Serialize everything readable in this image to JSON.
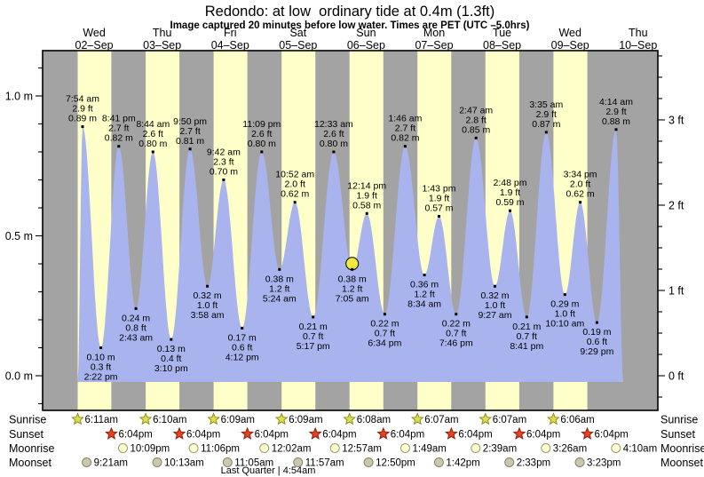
{
  "title": "Redondo: at low  ordinary tide at 0.4m (1.3ft)",
  "subtitle": "Image captured 20 minutes before low water. Times are PET (UTC –5.0hrs)",
  "days": [
    {
      "name": "Wed",
      "date": "02–Sep"
    },
    {
      "name": "Thu",
      "date": "03–Sep"
    },
    {
      "name": "Fri",
      "date": "04–Sep"
    },
    {
      "name": "Sat",
      "date": "05–Sep"
    },
    {
      "name": "Sun",
      "date": "06–Sep"
    },
    {
      "name": "Mon",
      "date": "07–Sep"
    },
    {
      "name": "Tue",
      "date": "08–Sep"
    },
    {
      "name": "Wed",
      "date": "09–Sep"
    },
    {
      "name": "Thu",
      "date": "10–Sep"
    }
  ],
  "chart_data": {
    "type": "area",
    "x_unit": "hours since Wed 02-Sep 00:00",
    "y_unit_left": "m",
    "y_unit_right": "ft",
    "yticks_m": [
      {
        "v": 1.0,
        "label": "1.0 m"
      },
      {
        "v": 0.5,
        "label": "0.5 m"
      },
      {
        "v": 0.0,
        "label": "0.0 m"
      }
    ],
    "yticks_ft": [
      {
        "v": 3,
        "label": "3 ft"
      },
      {
        "v": 2,
        "label": "2 ft"
      },
      {
        "v": 1,
        "label": "1 ft"
      },
      {
        "v": 0,
        "label": "0 ft"
      }
    ],
    "events": [
      {
        "t": 7.9,
        "time": "7:54 am",
        "ft": 2.9,
        "m": 0.89,
        "type": "high"
      },
      {
        "t": 14.3667,
        "time": "2:22 pm",
        "ft": 0.3,
        "m": 0.1,
        "type": "low"
      },
      {
        "t": 20.6833,
        "time": "8:41 pm",
        "ft": 2.7,
        "m": 0.82,
        "type": "high"
      },
      {
        "t": 26.7167,
        "time": "2:43 am",
        "ft": 0.8,
        "m": 0.24,
        "type": "low"
      },
      {
        "t": 32.7333,
        "time": "8:44 am",
        "ft": 2.6,
        "m": 0.8,
        "type": "high"
      },
      {
        "t": 39.1667,
        "time": "3:10 pm",
        "ft": 0.4,
        "m": 0.13,
        "type": "low"
      },
      {
        "t": 45.8333,
        "time": "9:50 pm",
        "ft": 2.7,
        "m": 0.81,
        "type": "high"
      },
      {
        "t": 51.9667,
        "time": "3:58 am",
        "ft": 1.0,
        "m": 0.32,
        "type": "low"
      },
      {
        "t": 57.7,
        "time": "9:42 am",
        "ft": 2.3,
        "m": 0.7,
        "type": "high"
      },
      {
        "t": 64.2,
        "time": "4:12 pm",
        "ft": 0.6,
        "m": 0.17,
        "type": "low"
      },
      {
        "t": 71.15,
        "time": "11:09 pm",
        "ft": 2.6,
        "m": 0.8,
        "type": "high"
      },
      {
        "t": 77.4,
        "time": "5:24 am",
        "ft": 1.2,
        "m": 0.38,
        "type": "low"
      },
      {
        "t": 82.8667,
        "time": "10:52 am",
        "ft": 2.0,
        "m": 0.62,
        "type": "high"
      },
      {
        "t": 89.2833,
        "time": "5:17 pm",
        "ft": 0.7,
        "m": 0.21,
        "type": "low"
      },
      {
        "t": 96.55,
        "time": "12:33 am",
        "ft": 2.6,
        "m": 0.8,
        "type": "high"
      },
      {
        "t": 103.0833,
        "time": "7:05 am",
        "ft": 1.2,
        "m": 0.38,
        "type": "low"
      },
      {
        "t": 108.2333,
        "time": "12:14 pm",
        "ft": 1.9,
        "m": 0.58,
        "type": "high"
      },
      {
        "t": 114.5667,
        "time": "6:34 pm",
        "ft": 0.7,
        "m": 0.22,
        "type": "low"
      },
      {
        "t": 121.7667,
        "time": "1:46 am",
        "ft": 2.7,
        "m": 0.82,
        "type": "high"
      },
      {
        "t": 128.5667,
        "time": "8:34 am",
        "ft": 1.2,
        "m": 0.36,
        "type": "low"
      },
      {
        "t": 133.7167,
        "time": "1:43 pm",
        "ft": 1.9,
        "m": 0.57,
        "type": "high"
      },
      {
        "t": 139.7667,
        "time": "7:46 pm",
        "ft": 0.7,
        "m": 0.22,
        "type": "low"
      },
      {
        "t": 146.7833,
        "time": "2:47 am",
        "ft": 2.8,
        "m": 0.85,
        "type": "high"
      },
      {
        "t": 153.45,
        "time": "9:27 am",
        "ft": 1.0,
        "m": 0.32,
        "type": "low"
      },
      {
        "t": 158.8,
        "time": "2:48 pm",
        "ft": 1.9,
        "m": 0.59,
        "type": "high"
      },
      {
        "t": 164.6833,
        "time": "8:41 pm",
        "ft": 0.7,
        "m": 0.21,
        "type": "low"
      },
      {
        "t": 171.5833,
        "time": "3:35 am",
        "ft": 2.9,
        "m": 0.87,
        "type": "high"
      },
      {
        "t": 178.1667,
        "time": "10:10 am",
        "ft": 1.0,
        "m": 0.29,
        "type": "low"
      },
      {
        "t": 183.5667,
        "time": "3:34 pm",
        "ft": 2.0,
        "m": 0.62,
        "type": "high"
      },
      {
        "t": 189.4833,
        "time": "9:29 pm",
        "ft": 0.6,
        "m": 0.19,
        "type": "low"
      },
      {
        "t": 196.2333,
        "time": "4:14 am",
        "ft": 2.9,
        "m": 0.88,
        "type": "high"
      }
    ],
    "curve_start": {
      "t": 6.17,
      "m": -0.022
    },
    "curve_end": {
      "t": 198.8,
      "m": -0.022
    },
    "current_marker": {
      "t": 103.0833,
      "m": 0.38
    },
    "day_night": {
      "sunrise_t": [
        6.1833,
        30.1667,
        54.15,
        78.15,
        102.1333,
        126.1167,
        150.1167,
        174.1
      ],
      "sunset_t": [
        18.0667,
        42.0667,
        66.0667,
        90.0667,
        114.0667,
        138.0667,
        162.0667,
        186.0667
      ]
    }
  },
  "astro": {
    "rows": [
      {
        "id": "sunrise",
        "label": "Sunrise",
        "icon": "sun-star-yellow",
        "entries": [
          {
            "t": 6.1833,
            "time": "6:11am"
          },
          {
            "t": 30.1667,
            "time": "6:10am"
          },
          {
            "t": 54.15,
            "time": "6:09am"
          },
          {
            "t": 78.15,
            "time": "6:09am"
          },
          {
            "t": 102.1333,
            "time": "6:08am"
          },
          {
            "t": 126.1167,
            "time": "6:07am"
          },
          {
            "t": 150.1167,
            "time": "6:07am"
          },
          {
            "t": 174.1,
            "time": "6:06am"
          }
        ]
      },
      {
        "id": "sunset",
        "label": "Sunset",
        "icon": "sun-star-red",
        "entries": [
          {
            "t": 18.0667,
            "time": "6:04pm"
          },
          {
            "t": 42.0667,
            "time": "6:04pm"
          },
          {
            "t": 66.0667,
            "time": "6:04pm"
          },
          {
            "t": 90.0667,
            "time": "6:04pm"
          },
          {
            "t": 114.0667,
            "time": "6:04pm"
          },
          {
            "t": 138.0667,
            "time": "6:04pm"
          },
          {
            "t": 162.0667,
            "time": "6:04pm"
          },
          {
            "t": 186.0667,
            "time": "6:04pm"
          }
        ]
      },
      {
        "id": "moonrise",
        "label": "Moonrise",
        "icon": "moon-circle-light",
        "entries": [
          {
            "t": 22.15,
            "time": "10:09pm"
          },
          {
            "t": 47.1,
            "time": "11:06pm"
          },
          {
            "t": 72.0333,
            "time": "12:02am"
          },
          {
            "t": 96.95,
            "time": "12:57am"
          },
          {
            "t": 121.8167,
            "time": "1:49am"
          },
          {
            "t": 146.65,
            "time": "2:39am"
          },
          {
            "t": 171.4333,
            "time": "3:26am"
          },
          {
            "t": 196.1667,
            "time": "4:10am"
          }
        ]
      },
      {
        "id": "moonset",
        "label": "Moonset",
        "icon": "moon-circle-gray",
        "entries": [
          {
            "t": 9.35,
            "time": "9:21am"
          },
          {
            "t": 34.2167,
            "time": "10:13am"
          },
          {
            "t": 59.0833,
            "time": "11:05am"
          },
          {
            "t": 83.95,
            "time": "11:57am"
          },
          {
            "t": 108.8333,
            "time": "12:50pm"
          },
          {
            "t": 133.7,
            "time": "1:42pm"
          },
          {
            "t": 158.55,
            "time": "2:33pm"
          },
          {
            "t": 183.3833,
            "time": "3:23pm"
          }
        ]
      }
    ],
    "phase_note": "Last Quarter | 4:54am"
  },
  "colors": {
    "night_band": "#a3a3a3",
    "day_band": "#ffffc9",
    "tide_fill": "#a9b4ee",
    "day_label": "#e8392c",
    "axis": "#000000",
    "text": "#000000",
    "current_marker_fill": "#f2e93f",
    "sunrise_star_fill": "#dede52",
    "sunrise_star_stroke": "#8f8f1e",
    "sunset_star_fill": "#e8431f",
    "sunset_star_stroke": "#8f1e10",
    "moonrise_fill": "#ffffd6",
    "moonrise_stroke": "#9a9a64",
    "moonset_fill": "#c9c9ae",
    "moonset_stroke": "#85856a"
  }
}
